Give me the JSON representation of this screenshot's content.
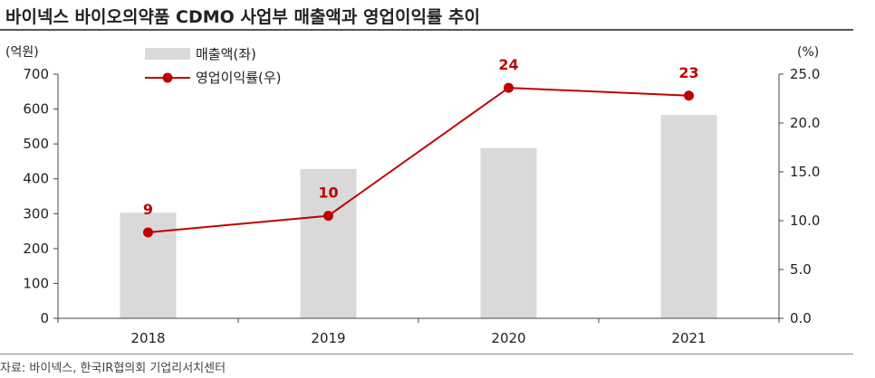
{
  "title": "바이넥스 바이오의약품 CDMO 사업부 매출액과 영업이익률 추이",
  "source": "자료: 바이넥스, 한국IR협의회 기업리서치센터",
  "chart_data": {
    "type": "bar",
    "categories": [
      "2018",
      "2019",
      "2020",
      "2021"
    ],
    "series": [
      {
        "name": "매출액(좌)",
        "type": "bar",
        "axis": "left",
        "values": [
          303,
          428,
          488,
          583
        ],
        "color": "#d9d9d9"
      },
      {
        "name": "영업이익률(우)",
        "type": "line",
        "axis": "right",
        "values": [
          8.8,
          10.5,
          23.6,
          22.8
        ],
        "labels": [
          "9",
          "10",
          "24",
          "23"
        ],
        "color": "#c00000"
      }
    ],
    "y_left": {
      "unit": "(억원)",
      "range": [
        0,
        700
      ],
      "ticks": [
        "0",
        "100",
        "200",
        "300",
        "400",
        "500",
        "600",
        "700"
      ]
    },
    "y_right": {
      "unit": "(%)",
      "range": [
        0,
        25
      ],
      "ticks": [
        "0.0",
        "5.0",
        "10.0",
        "15.0",
        "20.0",
        "25.0"
      ]
    },
    "grid": false,
    "legend_position": "top-left"
  }
}
